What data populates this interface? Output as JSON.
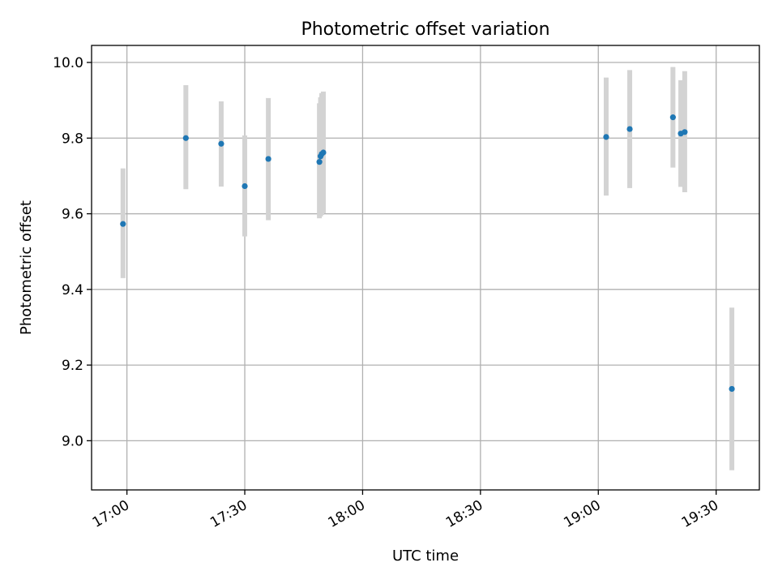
{
  "chart_data": {
    "type": "scatter",
    "title": "Photometric offset variation",
    "xlabel": "UTC time",
    "ylabel": "Photometric offset",
    "xlim": [
      "16:51",
      "19:41"
    ],
    "ylim": [
      8.87,
      10.045
    ],
    "x_ticks": [
      "17:00",
      "17:30",
      "18:00",
      "18:30",
      "19:00",
      "19:30"
    ],
    "y_ticks": [
      9.0,
      9.2,
      9.4,
      9.6,
      9.8,
      10.0
    ],
    "y_tick_labels": [
      "9.0",
      "9.2",
      "9.4",
      "9.6",
      "9.8",
      "10.0"
    ],
    "grid": true,
    "legend": "none",
    "colors": {
      "point": "#1f77b4",
      "errorbar": "#d3d3d3",
      "grid": "#b0b0b0"
    },
    "points": [
      {
        "t": "16:59",
        "y": 9.573,
        "lo": 9.43,
        "hi": 9.72
      },
      {
        "t": "17:15",
        "y": 9.8,
        "lo": 9.665,
        "hi": 9.94
      },
      {
        "t": "17:24",
        "y": 9.785,
        "lo": 9.672,
        "hi": 9.897
      },
      {
        "t": "17:30",
        "y": 9.673,
        "lo": 9.54,
        "hi": 9.807
      },
      {
        "t": "17:36",
        "y": 9.745,
        "lo": 9.583,
        "hi": 9.906
      },
      {
        "t": "17:49",
        "y": 9.737,
        "lo": 9.588,
        "hi": 9.892
      },
      {
        "t": "17:49.3",
        "y": 9.752,
        "lo": 9.593,
        "hi": 9.908
      },
      {
        "t": "17:49.6",
        "y": 9.758,
        "lo": 9.597,
        "hi": 9.919
      },
      {
        "t": "17:50",
        "y": 9.762,
        "lo": 9.601,
        "hi": 9.923
      },
      {
        "t": "19:02",
        "y": 9.803,
        "lo": 9.648,
        "hi": 9.96
      },
      {
        "t": "19:08",
        "y": 9.824,
        "lo": 9.668,
        "hi": 9.98
      },
      {
        "t": "19:19",
        "y": 9.855,
        "lo": 9.722,
        "hi": 9.988
      },
      {
        "t": "19:21",
        "y": 9.812,
        "lo": 9.671,
        "hi": 9.953
      },
      {
        "t": "19:22",
        "y": 9.816,
        "lo": 9.657,
        "hi": 9.977
      },
      {
        "t": "19:34",
        "y": 9.137,
        "lo": 8.922,
        "hi": 9.352
      }
    ]
  }
}
